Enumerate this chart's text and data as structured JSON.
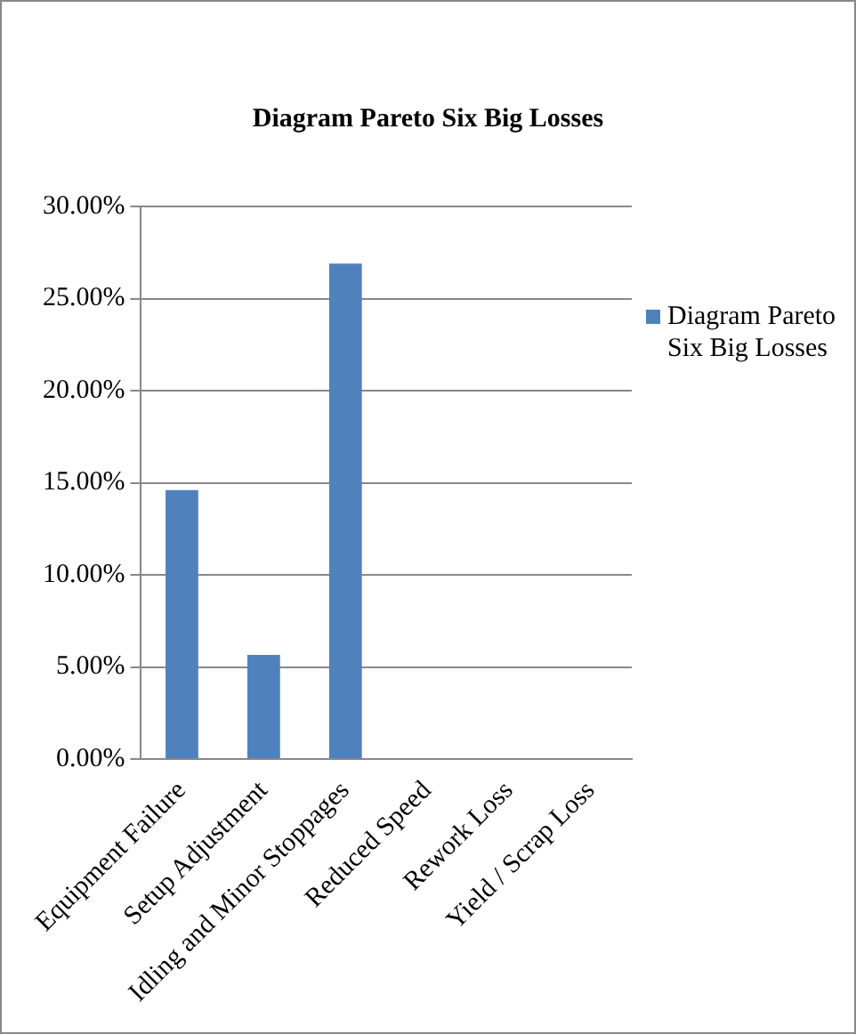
{
  "chart_data": {
    "type": "bar",
    "title": "Diagram Pareto Six Big Losses",
    "categories": [
      "Equipment Failure",
      "Setup Adjustment",
      "Idling and Minor Stoppages",
      "Reduced Speed",
      "Rework Loss",
      "Yield / Scrap Loss"
    ],
    "series": [
      {
        "name": "Diagram Pareto Six Big Losses",
        "color": "#4f81bd",
        "values": [
          14.6,
          5.65,
          26.9,
          0,
          0,
          0
        ]
      }
    ],
    "ylim": [
      0,
      30
    ],
    "yticks": [
      {
        "value": 0,
        "label": "0.00%"
      },
      {
        "value": 5,
        "label": "5.00%"
      },
      {
        "value": 10,
        "label": "10.00%"
      },
      {
        "value": 15,
        "label": "15.00%"
      },
      {
        "value": 20,
        "label": "20.00%"
      },
      {
        "value": 25,
        "label": "25.00%"
      },
      {
        "value": 30,
        "label": "30.00%"
      }
    ],
    "grid": "y",
    "legend": "right"
  }
}
